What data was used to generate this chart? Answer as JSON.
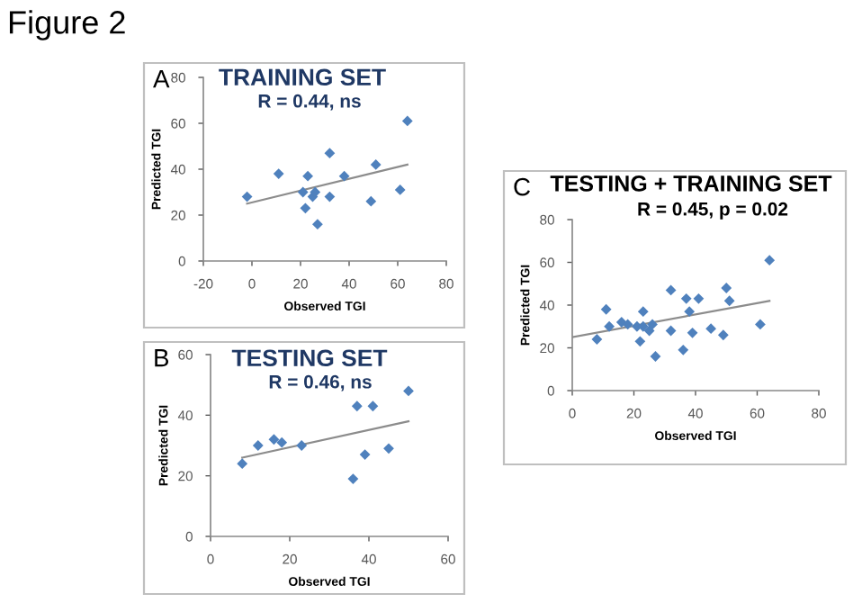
{
  "chart_data": [
    {
      "type": "scatter",
      "title": "TRAINING SET",
      "subtitle": "R = 0.44, ns",
      "xlabel": "Observed TGI",
      "ylabel": "Predicted TGI",
      "annotations": [
        "A",
        "Figure 2"
      ],
      "xlim": [
        -20,
        80
      ],
      "ylim": [
        0,
        80
      ],
      "xticks": [
        -20,
        0,
        20,
        40,
        60,
        80
      ],
      "yticks": [
        0,
        20,
        40,
        60,
        80
      ],
      "legend": false,
      "series": [
        {
          "color": "#4f81bd",
          "marker": "diamond",
          "x": [
            -2,
            11,
            21,
            22,
            23,
            25,
            26,
            27,
            32,
            32,
            38,
            49,
            51,
            61,
            64
          ],
          "values": [
            28,
            38,
            30,
            23,
            37,
            28,
            30,
            16,
            47,
            28,
            37,
            26,
            42,
            31,
            61
          ]
        },
        {
          "type": "line",
          "color": "#8c8c8c",
          "x": [
            -2,
            64
          ],
          "values": [
            25,
            42
          ]
        }
      ]
    },
    {
      "type": "scatter",
      "title": "TESTING SET",
      "subtitle": "R = 0.46, ns",
      "xlabel": "Observed TGI",
      "ylabel": "Predicted TGI",
      "annotations": [
        "B"
      ],
      "xlim": [
        0,
        60
      ],
      "ylim": [
        0,
        60
      ],
      "xticks": [
        0,
        20,
        40,
        60
      ],
      "yticks": [
        0,
        20,
        40,
        60
      ],
      "legend": false,
      "series": [
        {
          "color": "#4f81bd",
          "marker": "diamond",
          "x": [
            8,
            12,
            16,
            18,
            23,
            36,
            37,
            39,
            41,
            45,
            50
          ],
          "values": [
            24,
            30,
            32,
            31,
            30,
            19,
            43,
            27,
            43,
            29,
            48
          ]
        },
        {
          "type": "line",
          "color": "#8c8c8c",
          "x": [
            8,
            50
          ],
          "values": [
            26,
            38
          ]
        }
      ]
    },
    {
      "type": "scatter",
      "title": "TESTING + TRAINING SET",
      "subtitle": "R = 0.45, p = 0.02",
      "xlabel": "Observed TGI",
      "ylabel": "Predicted TGI",
      "annotations": [
        "C"
      ],
      "xlim": [
        0,
        80
      ],
      "ylim": [
        0,
        80
      ],
      "xticks": [
        0,
        20,
        40,
        60,
        80
      ],
      "yticks": [
        0,
        20,
        40,
        60,
        80
      ],
      "legend": false,
      "series": [
        {
          "color": "#4f81bd",
          "marker": "diamond",
          "x": [
            8,
            11,
            12,
            16,
            18,
            21,
            22,
            23,
            23,
            25,
            26,
            27,
            32,
            32,
            36,
            37,
            38,
            39,
            41,
            45,
            49,
            50,
            51,
            61,
            64
          ],
          "values": [
            24,
            38,
            30,
            32,
            31,
            30,
            23,
            37,
            30,
            28,
            31,
            16,
            47,
            28,
            19,
            43,
            37,
            27,
            43,
            29,
            26,
            48,
            42,
            31,
            61
          ]
        },
        {
          "type": "line",
          "color": "#8c8c8c",
          "x": [
            0,
            64
          ],
          "values": [
            25,
            42
          ]
        }
      ]
    }
  ]
}
